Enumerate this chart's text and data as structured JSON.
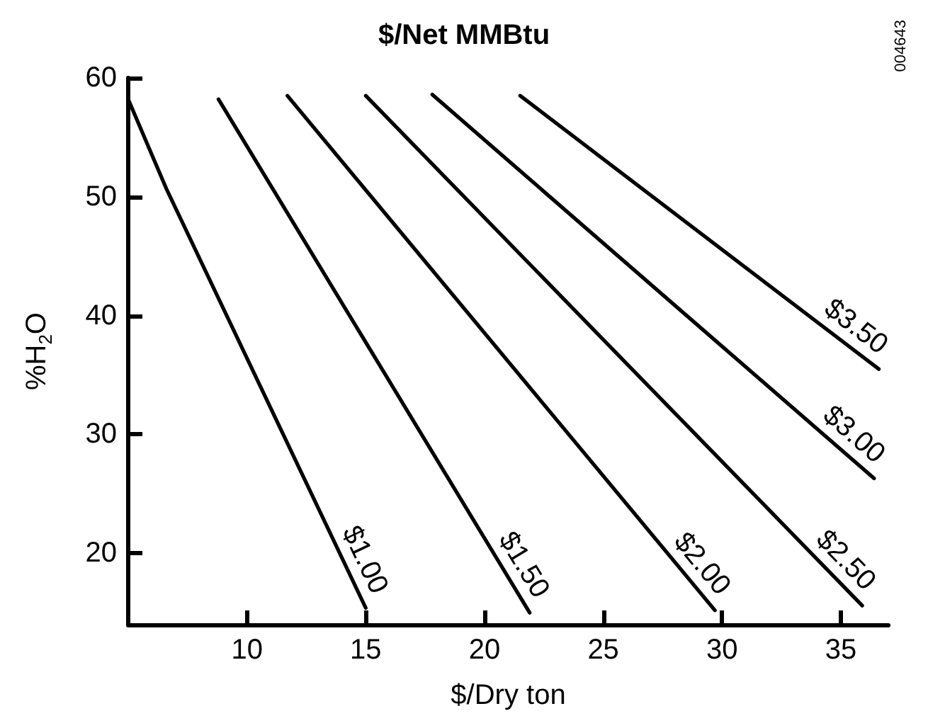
{
  "chart_data": {
    "type": "line",
    "title": "$/Net MMBtu",
    "xlabel": "$/Dry ton",
    "ylabel": "%H$_{2}$O",
    "xlim": [
      5,
      37
    ],
    "xticks": [
      10,
      15,
      20,
      25,
      30,
      35
    ],
    "ylim": [
      14,
      60
    ],
    "yticks": [
      20,
      30,
      40,
      50,
      60
    ],
    "grid": false,
    "legend": false,
    "marker": "none",
    "line_style": "solid",
    "annotations": [
      "004643"
    ],
    "series": [
      {
        "name": "$1.00",
        "color": "#000000",
        "x": [
          5,
          6.6,
          15.0
        ],
        "values": [
          58.2,
          50.7,
          15.4
        ]
      },
      {
        "name": "$1.50",
        "color": "#000000",
        "x": [
          8.8,
          21.9
        ],
        "values": [
          58.2,
          15.0
        ]
      },
      {
        "name": "$2.00",
        "color": "#000000",
        "x": [
          11.7,
          29.7
        ],
        "values": [
          58.5,
          15.2
        ]
      },
      {
        "name": "$2.50",
        "color": "#000000",
        "x": [
          15.0,
          35.9
        ],
        "values": [
          58.5,
          15.6
        ]
      },
      {
        "name": "$3.00",
        "color": "#000000",
        "x": [
          17.8,
          36.4
        ],
        "values": [
          58.6,
          26.3
        ]
      },
      {
        "name": "$3.50",
        "color": "#000000",
        "x": [
          21.5,
          36.6
        ],
        "values": [
          58.5,
          35.5
        ]
      }
    ]
  }
}
